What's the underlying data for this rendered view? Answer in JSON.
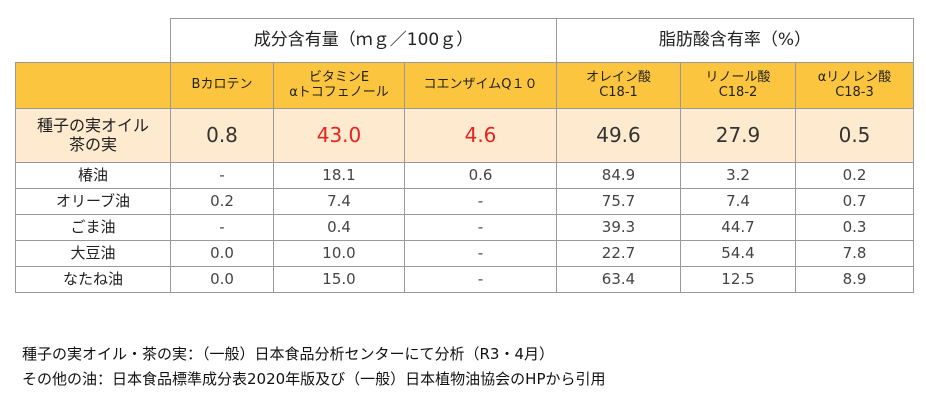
{
  "table": {
    "group_headers": [
      "成分含有量（ｍｇ／100ｇ）",
      "脂肪酸含有率（%）"
    ],
    "column_headers": [
      [
        "Bカロテン"
      ],
      [
        "ビタミンE",
        "αトコフェノール"
      ],
      [
        "コエンザイムQ１０"
      ],
      [
        "オレイン酸",
        "C18-1"
      ],
      [
        "リノール酸",
        "C18-2"
      ],
      [
        "αリノレン酸",
        "C18-3"
      ]
    ],
    "featured_row": {
      "label": [
        "種子の実オイル",
        "茶の実"
      ],
      "cells": [
        "0.8",
        "43.0",
        "4.6",
        "49.6",
        "27.9",
        "0.5"
      ],
      "colors": [
        "#333333",
        "#e8231f",
        "#e8231f",
        "#333333",
        "#333333",
        "#333333"
      ]
    },
    "rows": [
      [
        "椿油",
        "-",
        "18.1",
        "0.6",
        "84.9",
        "3.2",
        "0.2"
      ],
      [
        "オリーブ油",
        "0.2",
        "7.4",
        "-",
        "75.7",
        "7.4",
        "0.7"
      ],
      [
        "ごま油",
        "-",
        "0.4",
        "-",
        "39.3",
        "44.7",
        "0.3"
      ],
      [
        "大豆油",
        "0.0",
        "10.0",
        "-",
        "22.7",
        "54.4",
        "7.8"
      ],
      [
        "なたね油",
        "0.0",
        "15.0",
        "-",
        "63.4",
        "12.5",
        "8.9"
      ]
    ]
  },
  "notes": [
    "種子の実オイル・茶の実：（一般）日本食品分析センターにて分析（R3・4月）",
    "その他の油：日本食品標準成分表2020年版及び（一般）日本植物油協会のHPから引用"
  ]
}
